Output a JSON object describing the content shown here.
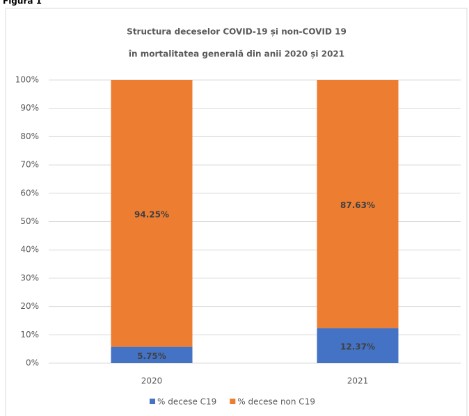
{
  "caption": "Figura 1",
  "chart_data": {
    "type": "stacked-bar",
    "title": [
      "Structura deceselor COVID-19 și non-COVID 19",
      "în mortalitatea generală din anii 2020 și 2021"
    ],
    "categories": [
      "2020",
      "2021"
    ],
    "series": [
      {
        "name": "% decese C19",
        "color": "#4472c4",
        "values": [
          5.75,
          12.37
        ],
        "value_labels": [
          "5.75%",
          "12.37%"
        ]
      },
      {
        "name": "% decese non C19",
        "color": "#ed7d31",
        "values": [
          94.25,
          87.63
        ],
        "value_labels": [
          "94.25%",
          "87.63%"
        ]
      }
    ],
    "ylim": [
      0,
      100
    ],
    "yticks": [
      {
        "value": 0,
        "label": "0%"
      },
      {
        "value": 10,
        "label": "10%"
      },
      {
        "value": 20,
        "label": "20%"
      },
      {
        "value": 30,
        "label": "30%"
      },
      {
        "value": 40,
        "label": "40%"
      },
      {
        "value": 50,
        "label": "50%"
      },
      {
        "value": 60,
        "label": "60%"
      },
      {
        "value": 70,
        "label": "70%"
      },
      {
        "value": 80,
        "label": "80%"
      },
      {
        "value": 90,
        "label": "90%"
      },
      {
        "value": 100,
        "label": "100%"
      }
    ],
    "grid": true,
    "legend": "bottom"
  }
}
